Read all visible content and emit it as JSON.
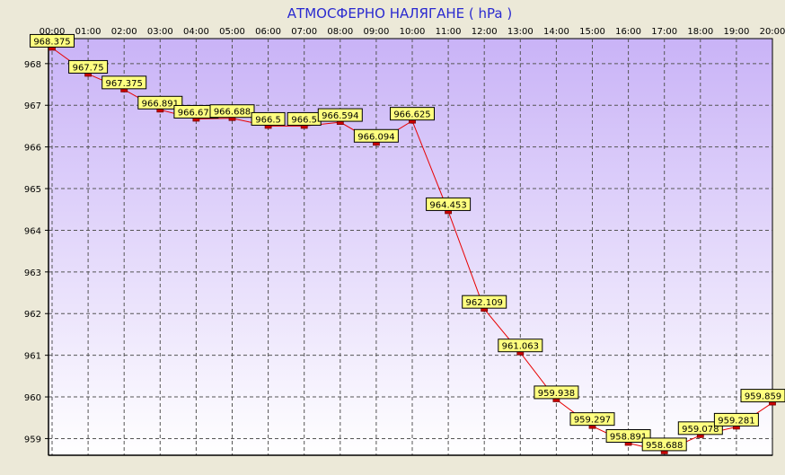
{
  "chart_data": {
    "type": "line",
    "title": "АТМОСФЕРНО НАЛЯГАНЕ  ( hPa )",
    "xlabel": "",
    "ylabel": "",
    "x": [
      "00:00",
      "01:00",
      "02:00",
      "03:00",
      "04:00",
      "05:00",
      "06:00",
      "07:00",
      "08:00",
      "09:00",
      "10:00",
      "11:00",
      "12:00",
      "13:00",
      "14:00",
      "15:00",
      "16:00",
      "17:00",
      "18:00",
      "19:00",
      "20:00"
    ],
    "series": [
      {
        "values": [
          968.375,
          967.75,
          967.375,
          966.891,
          966.672,
          966.688,
          966.5,
          966.5,
          966.594,
          966.094,
          966.625,
          964.453,
          962.109,
          961.063,
          959.938,
          959.297,
          958.891,
          958.688,
          959.078,
          959.281,
          959.859
        ],
        "labels": [
          "968.375",
          "967.75",
          "967.375",
          "966.891",
          "966.672",
          "966.688",
          "966.5",
          "966.5",
          "966.594",
          "966.094",
          "966.625",
          "964.453",
          "962.109",
          "961.063",
          "959.938",
          "959.297",
          "958.891",
          "958.688",
          "959.078",
          "959.281",
          "959.859"
        ]
      }
    ],
    "yticks": [
      959,
      960,
      961,
      962,
      963,
      964,
      965,
      966,
      967,
      968
    ],
    "ylim": [
      958.6,
      968.6
    ],
    "grid": true,
    "legend": "none",
    "colors": {
      "line": "#e80000",
      "marker": "#cc0000",
      "label_fill": "#ffff80",
      "title": "#2a2ad0",
      "bg_top": "#c9b3f7",
      "bg_bottom": "#ffffff"
    }
  }
}
